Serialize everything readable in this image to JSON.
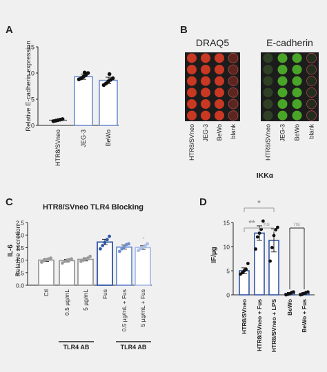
{
  "panels": {
    "A": "A",
    "B": "B",
    "C": "C",
    "D": "D"
  },
  "colors": {
    "background": "#f0f0f0",
    "axis": "#222222",
    "gray": "#9a9a9a",
    "blue_dark": "#2f56a6",
    "blue_mid": "#6f8fd0",
    "blue_light": "#a9bde6",
    "significance": "#9a9a9a",
    "draq5": "#d23a24",
    "ecadherin": "#4fb52a"
  },
  "chart_data": [
    {
      "panel": "A",
      "type": "bar",
      "title": "",
      "xlabel": "",
      "ylabel": "Relative E-cadherin expression",
      "ylim": [
        0,
        15
      ],
      "yticks": [
        "0",
        "5",
        "10",
        "15"
      ],
      "categories": [
        "HTR8/SVneo",
        "JEG-3",
        "BeWo"
      ],
      "values": [
        1.0,
        9.3,
        8.6
      ],
      "errors": [
        0.1,
        0.5,
        0.6
      ],
      "points": [
        [
          0.8,
          0.9,
          1.0,
          1.1,
          1.2
        ],
        [
          8.8,
          9.0,
          9.3,
          9.6,
          10.0,
          10.1
        ],
        [
          7.7,
          8.0,
          8.4,
          8.7,
          9.0,
          9.8
        ]
      ],
      "bar_styles": [
        "none",
        "blue",
        "blue"
      ],
      "grid": false
    },
    {
      "panel": "B",
      "type": "image",
      "titles": [
        "DRAQ5",
        "E-cadherin"
      ],
      "lane_labels": [
        "HTR8/SVneo",
        "JEG-3",
        "BeWo",
        "blank"
      ],
      "well_rows": 6
    },
    {
      "panel": "C",
      "type": "bar",
      "title": "HTR8/SVneo TLR4 Blocking",
      "xlabel": "",
      "ylabel": "IL-6",
      "ylabel2": "Relative secretion",
      "ylim": [
        0,
        2.5
      ],
      "yticks": [
        "0.0",
        "0.5",
        "1.0",
        "1.5",
        "2.0",
        "2.5"
      ],
      "categories": [
        "Ctl",
        "0.5 µg/mL",
        "5 µg/mL",
        "Fus",
        "0.5 µg/mL + Fus",
        "5 µg/mL + Fus"
      ],
      "values": [
        1.0,
        0.98,
        1.03,
        1.72,
        1.52,
        1.5
      ],
      "errors": [
        0.05,
        0.05,
        0.06,
        0.11,
        0.08,
        0.07
      ],
      "points": [
        [
          0.92,
          0.98,
          1.02,
          1.05,
          1.08
        ],
        [
          0.88,
          0.95,
          1.0,
          1.02,
          1.05
        ],
        [
          0.95,
          1.0,
          1.03,
          1.08,
          1.15
        ],
        [
          1.45,
          1.58,
          1.7,
          1.82,
          1.95
        ],
        [
          1.35,
          1.45,
          1.52,
          1.62,
          1.65
        ],
        [
          1.38,
          1.45,
          1.5,
          1.58,
          1.65
        ]
      ],
      "bar_colors": [
        "#9a9a9a",
        "#9a9a9a",
        "#9a9a9a",
        "#2f56a6",
        "#6f8fd0",
        "#a9bde6"
      ],
      "group_labels": [
        {
          "label": "TLR4 AB",
          "from": 1,
          "to": 2
        },
        {
          "label": "TLR4 AB",
          "from": 4,
          "to": 5
        }
      ],
      "grid": false
    },
    {
      "panel": "D",
      "type": "bar",
      "title": "IKKα",
      "xlabel": "",
      "ylabel": "IF/µg",
      "ylim": [
        0,
        15
      ],
      "yticks": [
        "0",
        "5",
        "10",
        "15"
      ],
      "categories": [
        "HTR8/SVneo",
        "HTR8/SVneo + Fus",
        "HTR8/SVneo + LPS",
        "BeWo",
        "BeWo + Fus"
      ],
      "values": [
        5.0,
        12.8,
        11.3,
        0.3,
        0.3
      ],
      "errors": [
        0.6,
        1.5,
        2.4,
        0.2,
        0.2
      ],
      "points": [
        [
          4.3,
          4.6,
          5.0,
          5.3,
          6.5
        ],
        [
          9.5,
          12.0,
          12.8,
          13.6,
          15.3
        ],
        [
          7.0,
          9.8,
          12.3,
          13.5,
          14.0
        ],
        [
          0.0,
          0.1,
          0.2,
          0.5,
          0.6
        ],
        [
          0.0,
          0.1,
          0.3,
          0.5,
          0.6
        ]
      ],
      "bar_colors": [
        "#2f56a6",
        "#2f56a6",
        "#2f56a6",
        "#2f56a6",
        "#2f56a6"
      ],
      "significance": [
        {
          "label": "*",
          "from": 0,
          "to": 2,
          "level": 2
        },
        {
          "label": "**",
          "from": 0,
          "to": 1,
          "level": 1
        },
        {
          "label": "ns",
          "from": 1,
          "to": 2,
          "level": 1
        },
        {
          "label": "ns",
          "from": 3,
          "to": 4,
          "level": 1
        }
      ],
      "grid": false
    }
  ]
}
